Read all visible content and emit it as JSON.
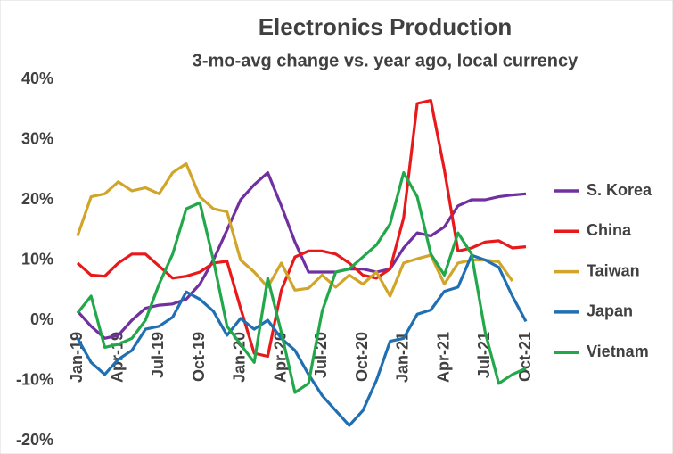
{
  "chart_data": {
    "type": "line",
    "title": "Electronics Production",
    "subtitle": "3-mo-avg change vs. year ago, local currency",
    "categories": [
      "Jan-19",
      null,
      null,
      "Apr-19",
      null,
      null,
      "Jul-19",
      null,
      null,
      "Oct-19",
      null,
      null,
      "Jan-20",
      null,
      null,
      "Apr-20",
      null,
      null,
      "Jul-20",
      null,
      null,
      "Oct-20",
      null,
      null,
      "Jan-21",
      null,
      null,
      "Apr-21",
      null,
      null,
      "Jul-21",
      null,
      null,
      "Oct-21"
    ],
    "ylim": [
      -20,
      40
    ],
    "yticks": [
      {
        "value": -20,
        "label": "-20%"
      },
      {
        "value": -10,
        "label": "-10%"
      },
      {
        "value": 0,
        "label": "0%"
      },
      {
        "value": 10,
        "label": "10%"
      },
      {
        "value": 20,
        "label": "20%"
      },
      {
        "value": 30,
        "label": "30%"
      },
      {
        "value": 40,
        "label": "40%"
      }
    ],
    "grid": false,
    "legend": "right",
    "series": [
      {
        "name": "S. Korea",
        "color": "#7030a0",
        "values": [
          1.5,
          -1,
          -3,
          -2.5,
          0,
          2,
          2.5,
          2.7,
          3.5,
          6,
          10,
          15,
          20,
          22.5,
          24.5,
          19,
          13,
          8,
          8,
          8,
          8.5,
          8.5,
          8,
          8.5,
          12,
          14.5,
          14,
          15.5,
          19,
          20,
          20,
          20.5,
          20.8,
          21
        ]
      },
      {
        "name": "China",
        "color": "#e8191b",
        "values": [
          9.5,
          7.5,
          7.3,
          9.5,
          11,
          11,
          9,
          7,
          7.3,
          8,
          9.5,
          9.8,
          2,
          -5.5,
          -6,
          5,
          10.5,
          11.5,
          11.5,
          11,
          9.5,
          7.5,
          7,
          8.5,
          17,
          36,
          36.5,
          25,
          11.5,
          12,
          13,
          13.2,
          12,
          12.2
        ]
      },
      {
        "name": "Taiwan",
        "color": "#d1a52a",
        "values": [
          14,
          20.5,
          21,
          23,
          21.5,
          22,
          21,
          24.5,
          26,
          20.5,
          18.5,
          18,
          10,
          8,
          5.5,
          9.5,
          5,
          5.3,
          7.5,
          5.5,
          7.5,
          6,
          8,
          4,
          9.5,
          10.2,
          10.8,
          6,
          9.5,
          10,
          10,
          9.7,
          6.5,
          null
        ]
      },
      {
        "name": "Japan",
        "color": "#1f6fb2",
        "values": [
          -3,
          -7,
          -9,
          -6.5,
          -5,
          -1.5,
          -1,
          0.5,
          4.7,
          3.5,
          1.5,
          -2.5,
          0.3,
          -1.5,
          0,
          -3,
          -5,
          -9,
          -12.5,
          -15,
          -17.5,
          -15,
          -10,
          -3.5,
          -3,
          1,
          1.7,
          4.8,
          5.5,
          10.8,
          10,
          8.8,
          4,
          -0.2
        ]
      },
      {
        "name": "Vietnam",
        "color": "#22a84a",
        "values": [
          1.2,
          4,
          -4.5,
          -4,
          -3,
          0,
          6,
          11,
          18.5,
          19.5,
          10,
          -1,
          -4,
          -7,
          7,
          -2,
          -12,
          -10.5,
          1.5,
          8,
          8.5,
          10.5,
          12.5,
          16,
          24.5,
          20.5,
          11,
          7.5,
          14.5,
          11,
          -2,
          -10.5,
          -9,
          -8
        ]
      }
    ]
  }
}
